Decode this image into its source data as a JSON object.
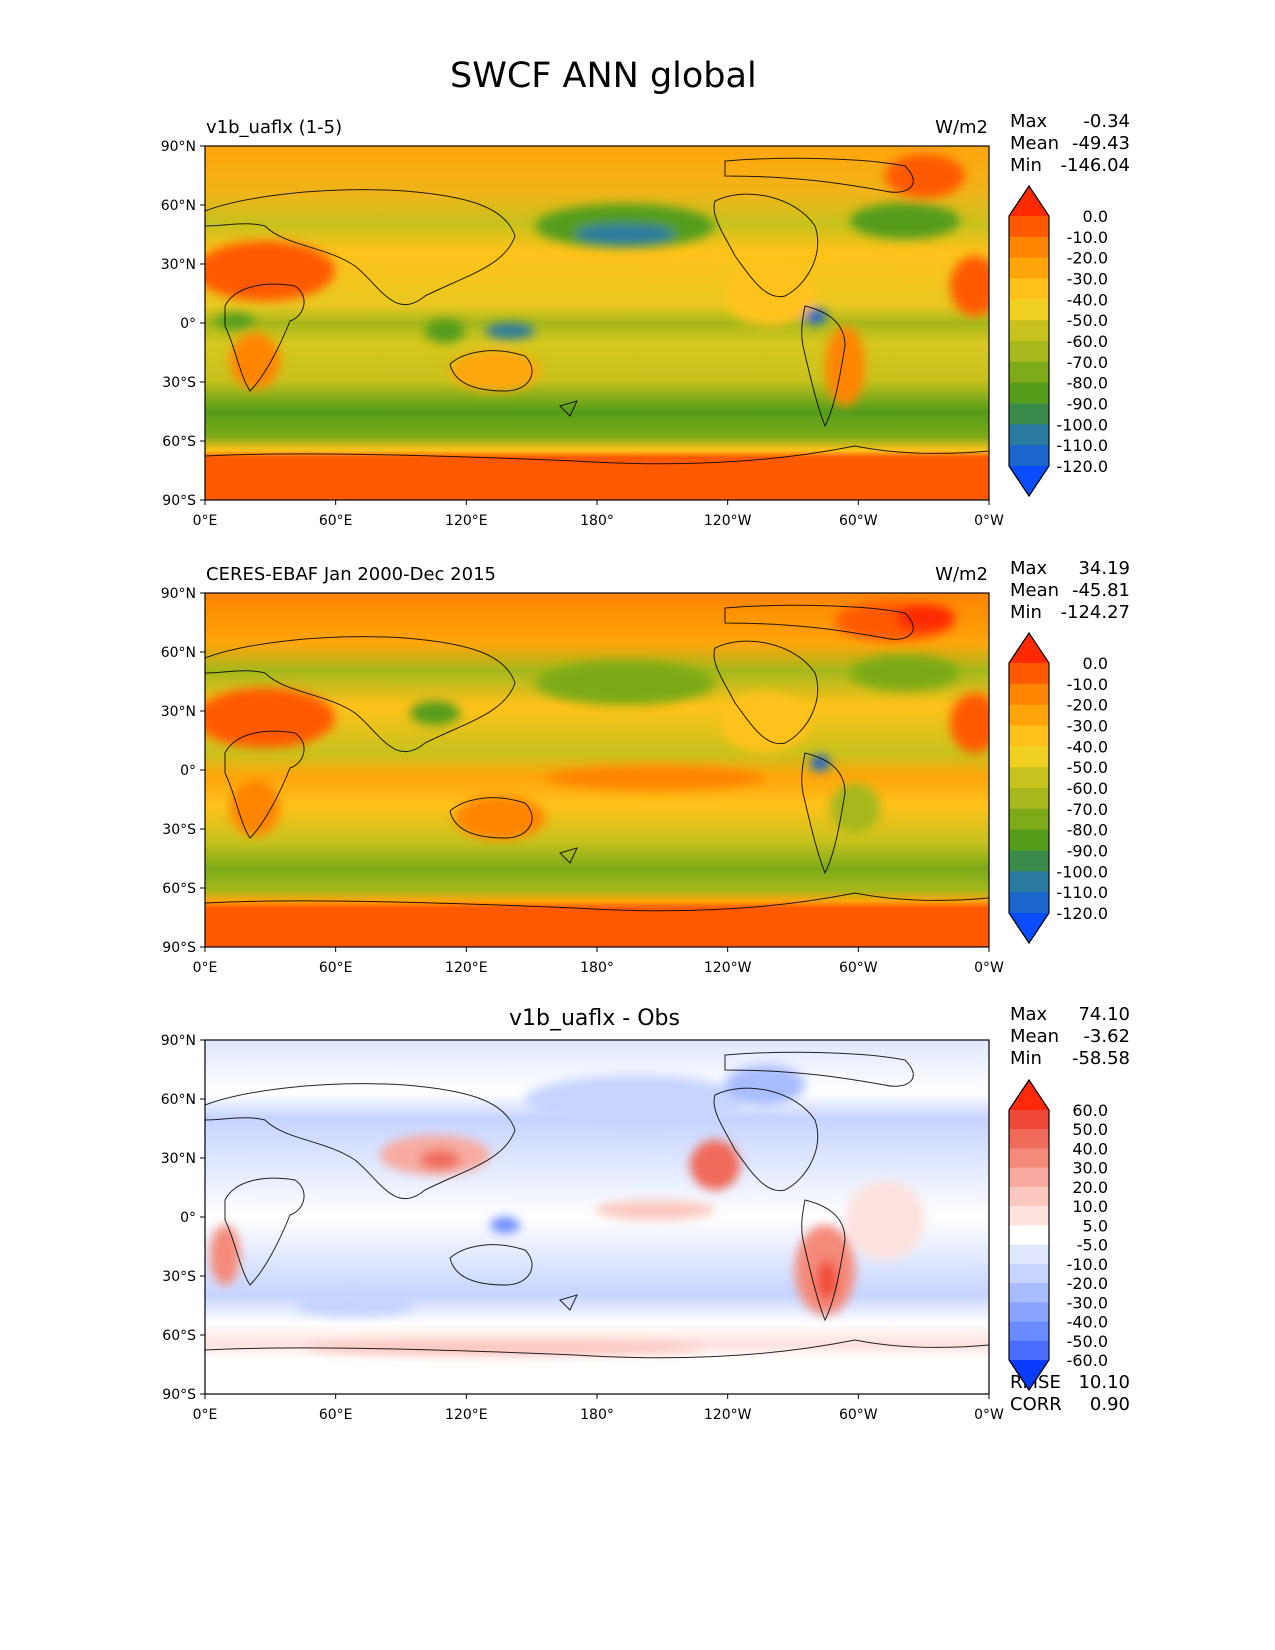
{
  "figure": {
    "title": "SWCF ANN global"
  },
  "axes": {
    "lat_ticks": [
      "90°N",
      "60°N",
      "30°N",
      "0°",
      "30°S",
      "60°S",
      "90°S"
    ],
    "lon_ticks": [
      "0°E",
      "60°E",
      "120°E",
      "180°",
      "120°W",
      "60°W",
      "0°W"
    ]
  },
  "panels": [
    {
      "title": "v1b_uaflx (1-5)",
      "units": "W/m2",
      "stats": {
        "max_label": "Max",
        "max": "-0.34",
        "mean_label": "Mean",
        "mean": "-49.43",
        "min_label": "Min",
        "min": "-146.04"
      }
    },
    {
      "title": "CERES-EBAF Jan 2000-Dec 2015",
      "units": "W/m2",
      "stats": {
        "max_label": "Max",
        "max": "34.19",
        "mean_label": "Mean",
        "mean": "-45.81",
        "min_label": "Min",
        "min": "-124.27"
      }
    },
    {
      "title": "v1b_uaflx - Obs",
      "units": "",
      "stats": {
        "max_label": "Max",
        "max": "74.10",
        "mean_label": "Mean",
        "mean": "-3.62",
        "min_label": "Min",
        "min": "-58.58"
      },
      "metrics": {
        "rmse_label": "RMSE",
        "rmse": "10.10",
        "corr_label": "CORR",
        "corr": "0.90"
      }
    }
  ],
  "chart_data": [
    {
      "type": "heatmap",
      "title": "v1b_uaflx (1-5)",
      "units": "W/m2",
      "xlabel": "",
      "ylabel": "",
      "xlim": [
        0,
        360
      ],
      "ylim": [
        -90,
        90
      ],
      "colorbar": {
        "levels": [
          "0.0",
          "-10.0",
          "-20.0",
          "-30.0",
          "-40.0",
          "-50.0",
          "-60.0",
          "-70.0",
          "-80.0",
          "-90.0",
          "-100.0",
          "-110.0",
          "-120.0"
        ],
        "colors": [
          "#ff2a00",
          "#ff5a00",
          "#ff8400",
          "#ffa50a",
          "#ffc21a",
          "#f0d020",
          "#c8c21c",
          "#a6b81c",
          "#7caa18",
          "#549c1a",
          "#3a8a4a",
          "#2a7aa0",
          "#1a66cc",
          "#0a4cff"
        ]
      },
      "stats": {
        "max": -0.34,
        "mean": -49.43,
        "min": -146.04
      }
    },
    {
      "type": "heatmap",
      "title": "CERES-EBAF Jan 2000-Dec 2015",
      "units": "W/m2",
      "xlabel": "",
      "ylabel": "",
      "xlim": [
        0,
        360
      ],
      "ylim": [
        -90,
        90
      ],
      "colorbar": {
        "levels": [
          "0.0",
          "-10.0",
          "-20.0",
          "-30.0",
          "-40.0",
          "-50.0",
          "-60.0",
          "-70.0",
          "-80.0",
          "-90.0",
          "-100.0",
          "-110.0",
          "-120.0"
        ],
        "colors": [
          "#ff2a00",
          "#ff5a00",
          "#ff8400",
          "#ffa50a",
          "#ffc21a",
          "#f0d020",
          "#c8c21c",
          "#a6b81c",
          "#7caa18",
          "#549c1a",
          "#3a8a4a",
          "#2a7aa0",
          "#1a66cc",
          "#0a4cff"
        ]
      },
      "stats": {
        "max": 34.19,
        "mean": -45.81,
        "min": -124.27
      }
    },
    {
      "type": "heatmap",
      "title": "v1b_uaflx - Obs",
      "xlabel": "",
      "ylabel": "",
      "xlim": [
        0,
        360
      ],
      "ylim": [
        -90,
        90
      ],
      "colorbar": {
        "levels": [
          "60.0",
          "50.0",
          "40.0",
          "30.0",
          "20.0",
          "10.0",
          "5.0",
          "-5.0",
          "-10.0",
          "-20.0",
          "-30.0",
          "-40.0",
          "-50.0",
          "-60.0"
        ],
        "colors": [
          "#ff2a0a",
          "#f04838",
          "#f06a5a",
          "#f58a7a",
          "#f8aaa0",
          "#fbc8c0",
          "#fde2de",
          "#ffffff",
          "#e0e8ff",
          "#c6d4ff",
          "#a8bcff",
          "#8aa4ff",
          "#6a8aff",
          "#4a6cff",
          "#0a3cff"
        ]
      },
      "stats": {
        "max": 74.1,
        "mean": -3.62,
        "min": -58.58,
        "rmse": 10.1,
        "corr": 0.9
      }
    }
  ]
}
